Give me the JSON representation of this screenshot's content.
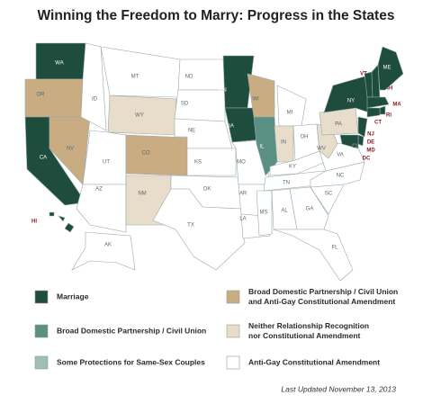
{
  "title": "Winning the Freedom to Marry: Progress in the States",
  "states": [
    {
      "label": "WA",
      "color": "#1e4d3e"
    },
    {
      "label": "OR",
      "color": "#c9ac82"
    },
    {
      "label": "CA",
      "color": "#1e4d3e"
    },
    {
      "label": "NV",
      "color": "#c9ac82"
    },
    {
      "label": "ID",
      "color": "#ffffff"
    },
    {
      "label": "MT",
      "color": "#ffffff"
    },
    {
      "label": "WY",
      "color": "#e8dccb"
    },
    {
      "label": "UT",
      "color": "#ffffff"
    },
    {
      "label": "CO",
      "color": "#c9ac82"
    },
    {
      "label": "AZ",
      "color": "#ffffff"
    },
    {
      "label": "NM",
      "color": "#e8dccb"
    },
    {
      "label": "ND",
      "color": "#ffffff"
    },
    {
      "label": "SD",
      "color": "#ffffff"
    },
    {
      "label": "NE",
      "color": "#ffffff"
    },
    {
      "label": "KS",
      "color": "#ffffff"
    },
    {
      "label": "OK",
      "color": "#ffffff"
    },
    {
      "label": "TX",
      "color": "#ffffff"
    },
    {
      "label": "MN",
      "color": "#1e4d3e"
    },
    {
      "label": "IA",
      "color": "#1e4d3e"
    },
    {
      "label": "MO",
      "color": "#ffffff"
    },
    {
      "label": "AR",
      "color": "#ffffff"
    },
    {
      "label": "LA",
      "color": "#ffffff"
    },
    {
      "label": "WI",
      "color": "#c9ac82"
    },
    {
      "label": "IL",
      "color": "#5a8f84"
    },
    {
      "label": "MI",
      "color": "#ffffff"
    },
    {
      "label": "IN",
      "color": "#e8dccb"
    },
    {
      "label": "OH",
      "color": "#ffffff"
    },
    {
      "label": "KY",
      "color": "#ffffff"
    },
    {
      "label": "TN",
      "color": "#ffffff"
    },
    {
      "label": "MS",
      "color": "#ffffff"
    },
    {
      "label": "AL",
      "color": "#ffffff"
    },
    {
      "label": "GA",
      "color": "#ffffff"
    },
    {
      "label": "FL",
      "color": "#ffffff"
    },
    {
      "label": "SC",
      "color": "#ffffff"
    },
    {
      "label": "NC",
      "color": "#ffffff"
    },
    {
      "label": "VA",
      "color": "#ffffff"
    },
    {
      "label": "WV",
      "color": "#e8dccb"
    },
    {
      "label": "PA",
      "color": "#e8dccb"
    },
    {
      "label": "NY",
      "color": "#1e4d3e"
    },
    {
      "label": "VT",
      "color": "#1e4d3e"
    },
    {
      "label": "NH",
      "color": "#1e4d3e"
    },
    {
      "label": "ME",
      "color": "#1e4d3e"
    },
    {
      "label": "MA",
      "color": "#1e4d3e"
    },
    {
      "label": "RI",
      "color": "#1e4d3e"
    },
    {
      "label": "CT",
      "color": "#1e4d3e"
    },
    {
      "label": "NJ",
      "color": "#1e4d3e"
    },
    {
      "label": "DE",
      "color": "#1e4d3e"
    },
    {
      "label": "MD",
      "color": "#1e4d3e"
    },
    {
      "label": "DC",
      "color": "#1e4d3e"
    },
    {
      "label": "AK",
      "color": "#ffffff"
    },
    {
      "label": "HI",
      "color": "#1e4d3e"
    }
  ],
  "legend": [
    {
      "lines": [
        "Marriage"
      ],
      "color": "#1e4d3e"
    },
    {
      "lines": [
        "Broad Domestic Partnership / Civil Union"
      ],
      "color": "#5a8f84"
    },
    {
      "lines": [
        "Some Protections for Same-Sex Couples"
      ],
      "color": "#9ebfb6"
    },
    {
      "lines": [
        "Broad Domestic Partnership / Civil Union",
        "and Anti-Gay Constitutional Amendment"
      ],
      "color": "#c9ac82"
    },
    {
      "lines": [
        "Neither Relationship Recognition",
        "nor Constitutional Amendment"
      ],
      "color": "#e8dccb"
    },
    {
      "lines": [
        "Anti-Gay Constitutional Amendment"
      ],
      "color": "#ffffff"
    }
  ],
  "footer": "Last Updated November 13, 2013"
}
